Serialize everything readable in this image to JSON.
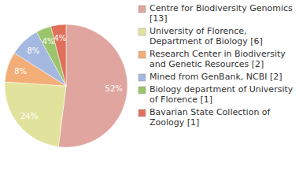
{
  "chart_data": {
    "type": "pie",
    "categories": [
      "Centre for Biodiversity Genomics [13]",
      "University of Florence, Department of Biology [6]",
      "Research Center in Biodiversity and Genetic Resources [2]",
      "Mined from GenBank, NCBI [2]",
      "Biology department of University of Florence [1]",
      "Bavarian State Collection of Zoology [1]"
    ],
    "values": [
      52,
      24,
      8,
      8,
      4,
      4
    ],
    "value_labels": [
      "52%",
      "24%",
      "8%",
      "8%",
      "4%",
      "4%"
    ],
    "colors": [
      "#e0a59e",
      "#e1e39d",
      "#f3ad76",
      "#a5b8e0",
      "#9cc46b",
      "#e0705a"
    ],
    "data_labels": true,
    "legend": "right"
  }
}
